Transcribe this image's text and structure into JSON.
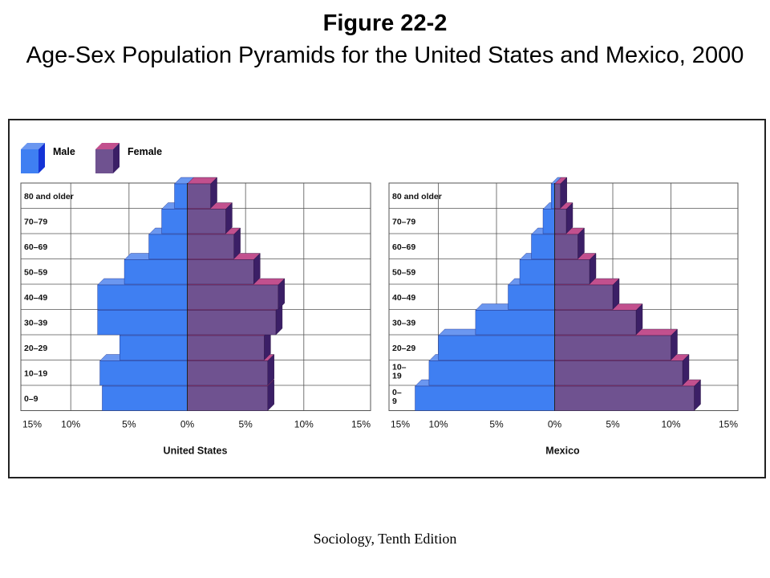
{
  "page": {
    "title": "Figure 22-2",
    "subtitle": "Age-Sex Population Pyramids for the United States and Mexico, 2000",
    "footer": "Sociology, Tenth Edition"
  },
  "legend": {
    "male_label": "Male",
    "female_label": "Female"
  },
  "colors": {
    "male_front": "#3f7ff2",
    "male_top": "#6b97f0",
    "male_side": "#1433d6",
    "female_front": "#6f5290",
    "female_top": "#c2508e",
    "female_side": "#3b1f66",
    "grid": "#555555"
  },
  "chart_data": [
    {
      "type": "bar",
      "subtype": "population-pyramid",
      "title": "United States",
      "categories": [
        "80 and older",
        "70–79",
        "60–69",
        "50–59",
        "40–49",
        "30–39",
        "20–29",
        "10–19",
        "0–9"
      ],
      "series": [
        {
          "name": "Male",
          "values": [
            1.1,
            2.2,
            3.3,
            5.4,
            7.7,
            7.7,
            5.8,
            7.5,
            7.3
          ]
        },
        {
          "name": "Female",
          "values": [
            2.0,
            3.3,
            4.0,
            5.7,
            7.8,
            7.6,
            6.6,
            6.9,
            6.9
          ]
        }
      ],
      "x_ticks": [
        "15%",
        "10%",
        "5%",
        "0%",
        "5%",
        "10%",
        "15%"
      ],
      "xlim": [
        -15,
        15
      ],
      "grid": true,
      "legend": "top-left"
    },
    {
      "type": "bar",
      "subtype": "population-pyramid",
      "title": "Mexico",
      "categories": [
        "80 and older",
        "70–79",
        "60–69",
        "50–59",
        "40–49",
        "30–39",
        "20–29",
        "10–\n19",
        "0–\n9"
      ],
      "series": [
        {
          "name": "Male",
          "values": [
            0.3,
            1.0,
            2.0,
            3.0,
            4.0,
            6.8,
            10.0,
            10.8,
            12.0
          ]
        },
        {
          "name": "Female",
          "values": [
            0.5,
            1.0,
            2.0,
            3.0,
            5.0,
            7.0,
            10.0,
            11.0,
            12.0
          ]
        }
      ],
      "x_ticks": [
        "15%",
        "10%",
        "5%",
        "0%",
        "5%",
        "10%",
        "15%"
      ],
      "xlim": [
        -15,
        15
      ],
      "grid": true,
      "legend": "top-left"
    }
  ]
}
